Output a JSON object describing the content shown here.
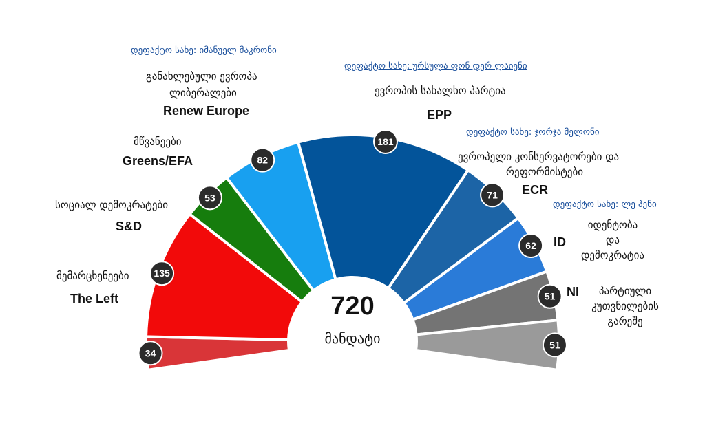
{
  "chart_data": {
    "type": "pie",
    "subtype": "parliament-half-donut",
    "total": "720",
    "total_label": "მანდატი",
    "series": [
      {
        "name": "The Left",
        "value": 34,
        "color": "#d93538"
      },
      {
        "name": "S&D",
        "value": 135,
        "color": "#f20a0a"
      },
      {
        "name": "Greens/EFA",
        "value": 53,
        "color": "#167d0d"
      },
      {
        "name": "Renew Europe",
        "value": 82,
        "color": "#18a0f0"
      },
      {
        "name": "EPP",
        "value": 181,
        "color": "#03549a"
      },
      {
        "name": "ECR",
        "value": 71,
        "color": "#1c64a6"
      },
      {
        "name": "ID",
        "value": 62,
        "color": "#2a7bd8"
      },
      {
        "name": "NI",
        "value": 51,
        "color": "#747474"
      },
      {
        "value": 51,
        "color": "#9a9a9a"
      }
    ]
  },
  "labels": {
    "left": {
      "geo": "მემარცხენეები",
      "abbr": "The Left"
    },
    "sd": {
      "geo": "სოციალ დემოკრატები",
      "abbr": "S&D"
    },
    "greens": {
      "geo": "მწვანეები",
      "abbr": "Greens/EFA"
    },
    "renew": {
      "link": "დეფაქტო სახე: იმანუელ მაკრონი",
      "geo1": "განახლებული ევროპა",
      "geo2": "ლიბერალები",
      "abbr": "Renew Europe"
    },
    "epp": {
      "link": "დეფაქტო სახე: ურსულა ფონ დერ ლაიენი",
      "geo": "ევროპის სახალხო პარტია",
      "abbr": "EPP"
    },
    "ecr": {
      "link": "დეფაქტო სახე: ჯორჯა მელონი",
      "geo1": "ევროპელი კონსერვატორები და",
      "geo2": "რეფორმისტები",
      "abbr": "ECR"
    },
    "id": {
      "link": "დეფაქტო სახე: ლე პენი",
      "geo1": "იდენტობა",
      "geo2": "და",
      "geo3": "დემოკრატია",
      "abbr": "ID"
    },
    "ni": {
      "geo1": "პარტიული",
      "geo2": "კუთვნილების",
      "geo3": "გარეშე",
      "abbr": "NI"
    }
  }
}
